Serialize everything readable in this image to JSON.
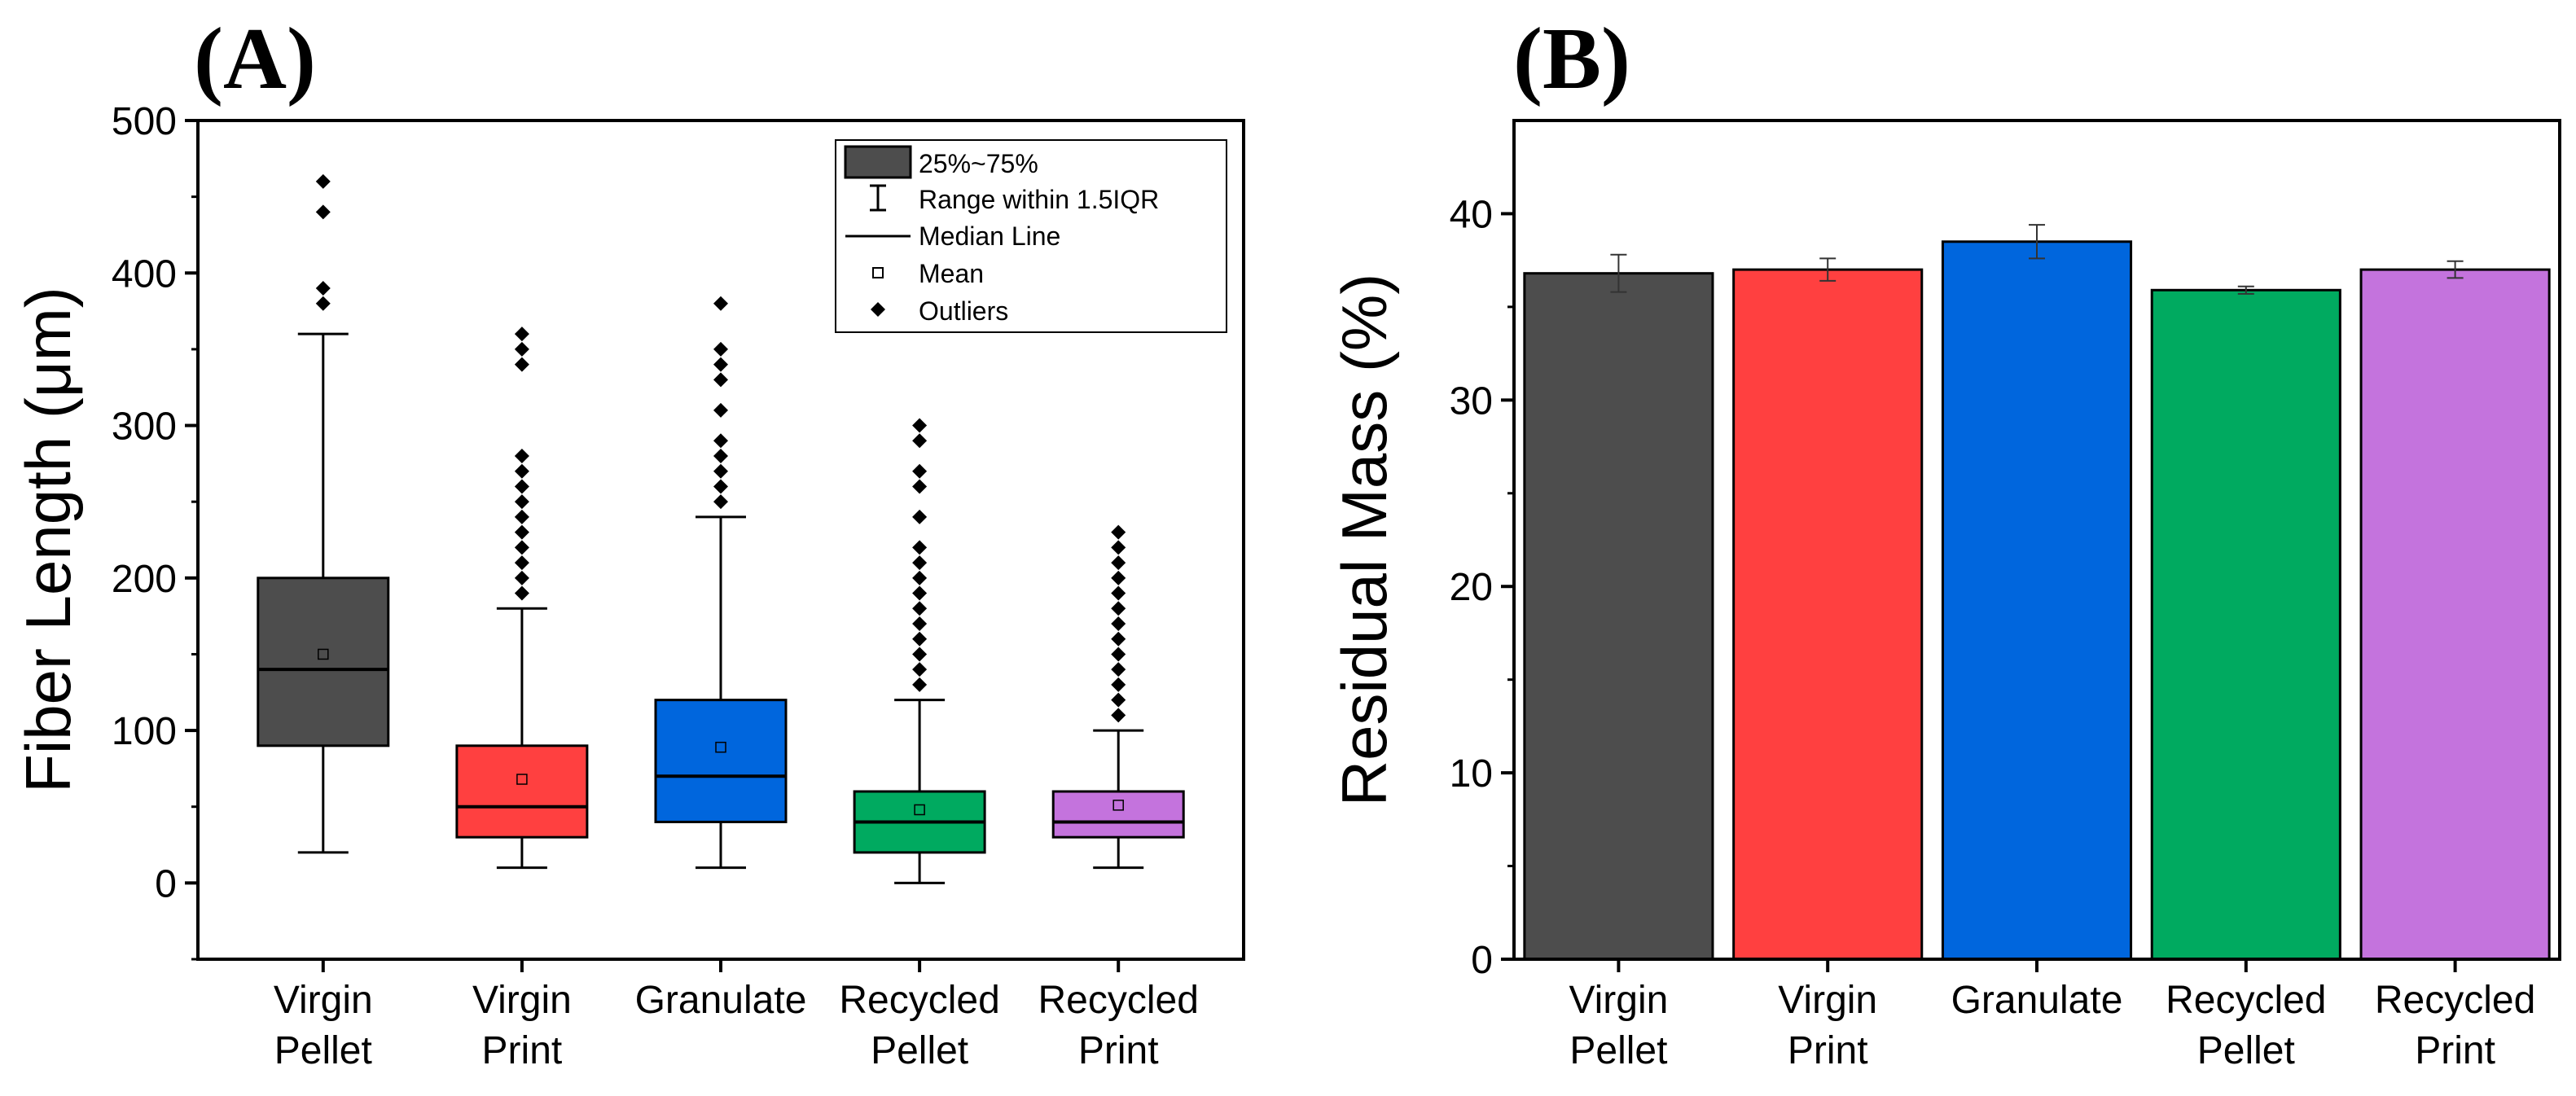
{
  "panels": {
    "a": "(A)",
    "b": "(B)"
  },
  "legend": {
    "box": "25%~75%",
    "range": "Range within 1.5IQR",
    "median": "Median Line",
    "mean": "Mean",
    "outliers": "Outliers"
  },
  "chart_data": [
    {
      "type": "box",
      "panel": "(A)",
      "ylabel": "Fiber Length (μm)",
      "ylim": [
        -50,
        500
      ],
      "yticks": [
        0,
        100,
        200,
        300,
        400,
        500
      ],
      "categories": [
        [
          "Virgin",
          "Pellet"
        ],
        [
          "Virgin",
          "Print"
        ],
        [
          "Granulate"
        ],
        [
          "Recycled",
          "Pellet"
        ],
        [
          "Recycled",
          "Print"
        ]
      ],
      "colors": [
        "#4d4d4d",
        "#ff4040",
        "#0066dd",
        "#00aa60",
        "#c473dd"
      ],
      "boxes": [
        {
          "q1": 90,
          "median": 140,
          "q3": 200,
          "mean": 150,
          "whisker_low": 20,
          "whisker_high": 360,
          "outliers": [
            380,
            390,
            440,
            460
          ]
        },
        {
          "q1": 30,
          "median": 50,
          "q3": 90,
          "mean": 68,
          "whisker_low": 10,
          "whisker_high": 180,
          "outliers": [
            190,
            200,
            210,
            220,
            230,
            240,
            250,
            260,
            270,
            280,
            340,
            350,
            360
          ]
        },
        {
          "q1": 40,
          "median": 70,
          "q3": 120,
          "mean": 89,
          "whisker_low": 10,
          "whisker_high": 240,
          "outliers": [
            250,
            260,
            270,
            280,
            290,
            310,
            330,
            340,
            350,
            380
          ]
        },
        {
          "q1": 20,
          "median": 40,
          "q3": 60,
          "mean": 48,
          "whisker_low": 0,
          "whisker_high": 120,
          "outliers": [
            130,
            140,
            150,
            160,
            170,
            180,
            190,
            200,
            210,
            220,
            240,
            260,
            270,
            290,
            300
          ]
        },
        {
          "q1": 30,
          "median": 40,
          "q3": 60,
          "mean": 51,
          "whisker_low": 10,
          "whisker_high": 100,
          "outliers": [
            110,
            120,
            130,
            140,
            150,
            160,
            170,
            180,
            190,
            200,
            210,
            220,
            230
          ]
        }
      ]
    },
    {
      "type": "bar",
      "panel": "(B)",
      "ylabel": "Residual Mass (%)",
      "ylim": [
        0,
        45
      ],
      "yticks": [
        0,
        10,
        20,
        30,
        40
      ],
      "categories": [
        [
          "Virgin",
          "Pellet"
        ],
        [
          "Virgin",
          "Print"
        ],
        [
          "Granulate"
        ],
        [
          "Recycled",
          "Pellet"
        ],
        [
          "Recycled",
          "Print"
        ]
      ],
      "colors": [
        "#4d4d4d",
        "#ff4040",
        "#0066dd",
        "#00aa60",
        "#c473dd"
      ],
      "values": [
        36.8,
        37.0,
        38.5,
        35.9,
        37.0
      ],
      "errors": [
        1.0,
        0.6,
        0.9,
        0.2,
        0.45
      ]
    }
  ]
}
